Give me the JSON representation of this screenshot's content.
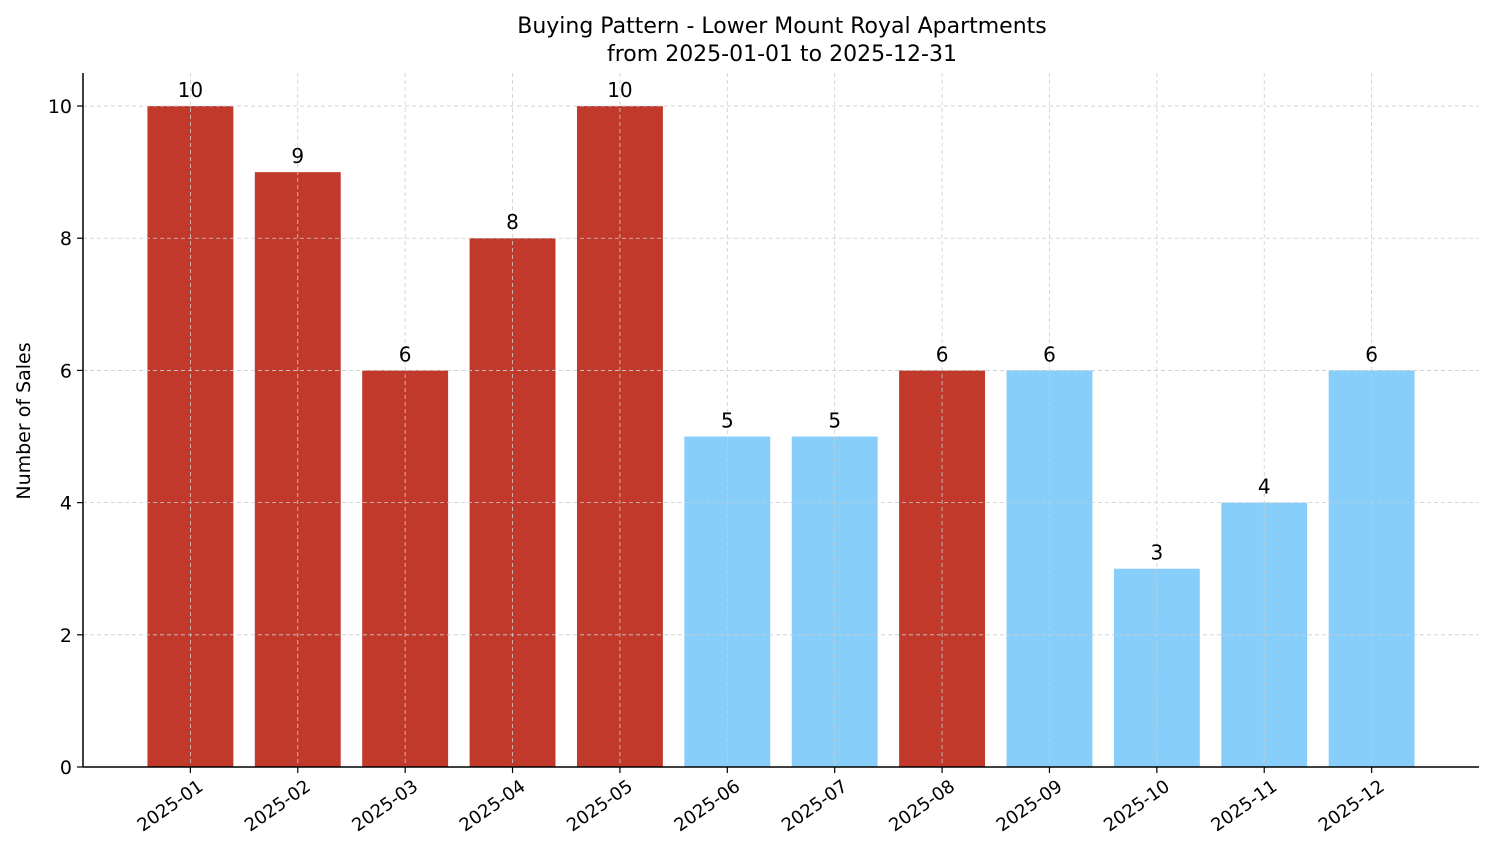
{
  "chart_data": {
    "type": "bar",
    "title": "Buying Pattern - Lower Mount Royal Apartments",
    "subtitle": "from 2025-01-01 to 2025-12-31",
    "xlabel": "",
    "ylabel": "Number of Sales",
    "categories": [
      "2025-01",
      "2025-02",
      "2025-03",
      "2025-04",
      "2025-05",
      "2025-06",
      "2025-07",
      "2025-08",
      "2025-09",
      "2025-10",
      "2025-11",
      "2025-12"
    ],
    "values": [
      10,
      9,
      6,
      8,
      10,
      5,
      5,
      6,
      6,
      3,
      4,
      6
    ],
    "bar_colors": [
      "#C0392B",
      "#C0392B",
      "#C0392B",
      "#C0392B",
      "#C0392B",
      "#87CEFA",
      "#87CEFA",
      "#C0392B",
      "#87CEFA",
      "#87CEFA",
      "#87CEFA",
      "#87CEFA"
    ],
    "ylim": [
      0,
      10.5
    ],
    "yticks": [
      0,
      2,
      4,
      6,
      8,
      10
    ],
    "grid": true,
    "data_labels": true
  }
}
